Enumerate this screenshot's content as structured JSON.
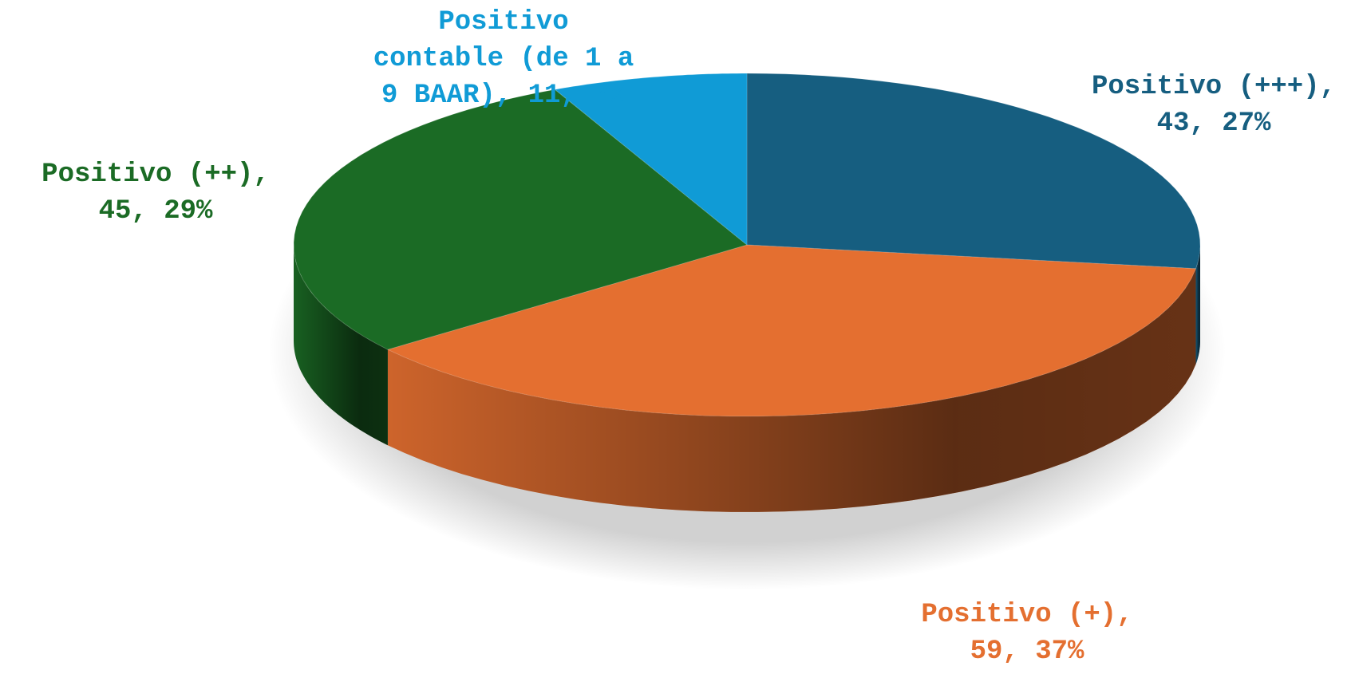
{
  "chart_data": {
    "type": "pie3d",
    "values": [
      43,
      59,
      45,
      11
    ],
    "value_labels": [
      "Positivo (+++), 43, 27%",
      "Positivo (+), 59, 37%",
      "Positivo (++), 45, 29%",
      "Positivo contable (de 1 a 9 BAAR), 11, 7%"
    ],
    "colors": [
      "#165e80",
      "#e46f30",
      "#1b6b25",
      "#109bd6"
    ]
  }
}
